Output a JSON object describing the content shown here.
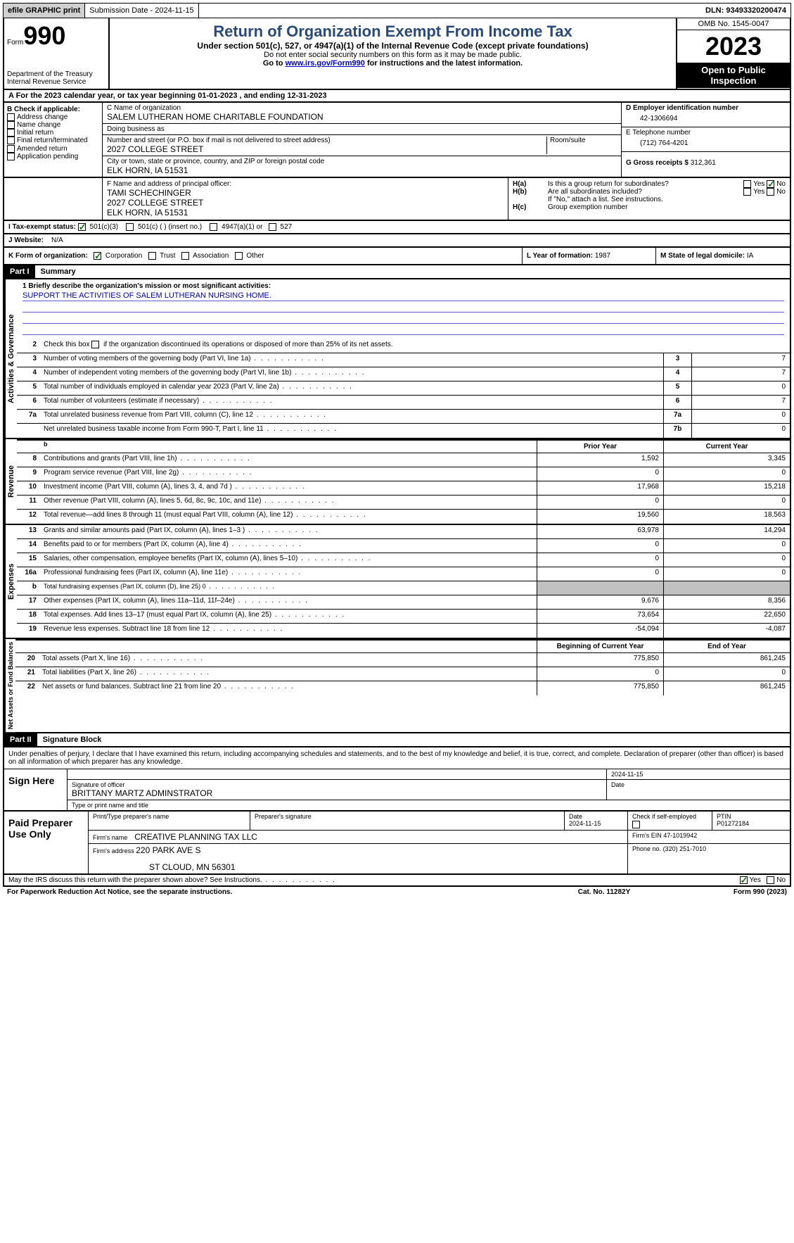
{
  "topbar": {
    "efile": "efile GRAPHIC print",
    "submission": "Submission Date - 2024-11-15",
    "dln": "DLN: 93493320200474"
  },
  "header": {
    "form_label": "Form",
    "form_num": "990",
    "dept": "Department of the Treasury Internal Revenue Service",
    "title": "Return of Organization Exempt From Income Tax",
    "sub": "Under section 501(c), 527, or 4947(a)(1) of the Internal Revenue Code (except private foundations)",
    "note1": "Do not enter social security numbers on this form as it may be made public.",
    "note2_pre": "Go to ",
    "note2_link": "www.irs.gov/Form990",
    "note2_post": " for instructions and the latest information.",
    "omb": "OMB No. 1545-0047",
    "year": "2023",
    "open": "Open to Public Inspection"
  },
  "row_a": "A For the 2023 calendar year, or tax year beginning 01-01-2023    , and ending 12-31-2023",
  "box_b": {
    "label": "B Check if applicable:",
    "items": [
      "Address change",
      "Name change",
      "Initial return",
      "Final return/terminated",
      "Amended return",
      "Application pending"
    ]
  },
  "box_c": {
    "name_label": "C Name of organization",
    "name": "SALEM LUTHERAN HOME CHARITABLE FOUNDATION",
    "dba_label": "Doing business as",
    "dba": "",
    "addr_label": "Number and street (or P.O. box if mail is not delivered to street address)",
    "addr": "2027 COLLEGE STREET",
    "room_label": "Room/suite",
    "city_label": "City or town, state or province, country, and ZIP or foreign postal code",
    "city": "ELK HORN, IA  51531"
  },
  "box_d": {
    "label": "D Employer identification number",
    "val": "42-1306694"
  },
  "box_e": {
    "label": "E Telephone number",
    "val": "(712) 764-4201"
  },
  "box_g": {
    "label": "G Gross receipts $ ",
    "val": "312,361"
  },
  "box_f": {
    "label": "F  Name and address of principal officer:",
    "name": "TAMI SCHECHINGER",
    "addr1": "2027 COLLEGE STREET",
    "addr2": "ELK HORN, IA  51531"
  },
  "box_h": {
    "a_label": "H(a)",
    "a_text": "Is this a group return for subordinates?",
    "b_label": "H(b)",
    "b_text": "Are all subordinates included?",
    "note": "If \"No,\" attach a list. See instructions.",
    "c_label": "H(c)",
    "c_text": "Group exemption number"
  },
  "box_i": {
    "label": "I   Tax-exempt status:",
    "o1": "501(c)(3)",
    "o2": "501(c) (  ) (insert no.)",
    "o3": "4947(a)(1) or",
    "o4": "527"
  },
  "box_j": {
    "label": "J   Website:",
    "val": "N/A"
  },
  "box_k": {
    "label": "K Form of organization:",
    "o1": "Corporation",
    "o2": "Trust",
    "o3": "Association",
    "o4": "Other"
  },
  "box_l": {
    "label": "L Year of formation: ",
    "val": "1987"
  },
  "box_m": {
    "label": "M State of legal domicile: ",
    "val": "IA"
  },
  "part1": {
    "header": "Part I",
    "title": "Summary",
    "vtabs": [
      "Activities & Governance",
      "Revenue",
      "Expenses",
      "Net Assets or Fund Balances"
    ],
    "line1_label": "1  Briefly describe the organization's mission or most significant activities:",
    "mission": "SUPPORT THE ACTIVITIES OF SALEM LUTHERAN NURSING HOME.",
    "line2": "Check this box       if the organization discontinued its operations or disposed of more than 25% of its net assets.",
    "gov_lines": [
      {
        "n": "3",
        "t": "Number of voting members of the governing body (Part VI, line 1a)",
        "box": "3",
        "v": "7"
      },
      {
        "n": "4",
        "t": "Number of independent voting members of the governing body (Part VI, line 1b)",
        "box": "4",
        "v": "7"
      },
      {
        "n": "5",
        "t": "Total number of individuals employed in calendar year 2023 (Part V, line 2a)",
        "box": "5",
        "v": "0"
      },
      {
        "n": "6",
        "t": "Total number of volunteers (estimate if necessary)",
        "box": "6",
        "v": "7"
      },
      {
        "n": "7a",
        "t": "Total unrelated business revenue from Part VIII, column (C), line 12",
        "box": "7a",
        "v": "0"
      },
      {
        "n": "",
        "t": "Net unrelated business taxable income from Form 990-T, Part I, line 11",
        "box": "7b",
        "v": "0"
      }
    ],
    "col_prior": "Prior Year",
    "col_current": "Current Year",
    "rev_lines": [
      {
        "n": "8",
        "t": "Contributions and grants (Part VIII, line 1h)",
        "p": "1,592",
        "c": "3,345"
      },
      {
        "n": "9",
        "t": "Program service revenue (Part VIII, line 2g)",
        "p": "0",
        "c": "0"
      },
      {
        "n": "10",
        "t": "Investment income (Part VIII, column (A), lines 3, 4, and 7d )",
        "p": "17,968",
        "c": "15,218"
      },
      {
        "n": "11",
        "t": "Other revenue (Part VIII, column (A), lines 5, 6d, 8c, 9c, 10c, and 11e)",
        "p": "0",
        "c": "0"
      },
      {
        "n": "12",
        "t": "Total revenue—add lines 8 through 11 (must equal Part VIII, column (A), line 12)",
        "p": "19,560",
        "c": "18,563"
      }
    ],
    "exp_lines": [
      {
        "n": "13",
        "t": "Grants and similar amounts paid (Part IX, column (A), lines 1–3 )",
        "p": "63,978",
        "c": "14,294"
      },
      {
        "n": "14",
        "t": "Benefits paid to or for members (Part IX, column (A), line 4)",
        "p": "0",
        "c": "0"
      },
      {
        "n": "15",
        "t": "Salaries, other compensation, employee benefits (Part IX, column (A), lines 5–10)",
        "p": "0",
        "c": "0"
      },
      {
        "n": "16a",
        "t": "Professional fundraising fees (Part IX, column (A), line 11e)",
        "p": "0",
        "c": "0"
      },
      {
        "n": "b",
        "t": "Total fundraising expenses (Part IX, column (D), line 25) 0",
        "p": "",
        "c": "",
        "shaded": true,
        "small": true
      },
      {
        "n": "17",
        "t": "Other expenses (Part IX, column (A), lines 11a–11d, 11f–24e)",
        "p": "9,676",
        "c": "8,356"
      },
      {
        "n": "18",
        "t": "Total expenses. Add lines 13–17 (must equal Part IX, column (A), line 25)",
        "p": "73,654",
        "c": "22,650"
      },
      {
        "n": "19",
        "t": "Revenue less expenses. Subtract line 18 from line 12",
        "p": "-54,094",
        "c": "-4,087"
      }
    ],
    "col_begin": "Beginning of Current Year",
    "col_end": "End of Year",
    "net_lines": [
      {
        "n": "20",
        "t": "Total assets (Part X, line 16)",
        "p": "775,850",
        "c": "861,245"
      },
      {
        "n": "21",
        "t": "Total liabilities (Part X, line 26)",
        "p": "0",
        "c": "0"
      },
      {
        "n": "22",
        "t": "Net assets or fund balances. Subtract line 21 from line 20",
        "p": "775,850",
        "c": "861,245"
      }
    ]
  },
  "part2": {
    "header": "Part II",
    "title": "Signature Block",
    "perjury": "Under penalties of perjury, I declare that I have examined this return, including accompanying schedules and statements, and to the best of my knowledge and belief, it is true, correct, and complete. Declaration of preparer (other than officer) is based on all information of which preparer has any knowledge.",
    "sign_here": "Sign Here",
    "sig_officer_label": "Signature of officer",
    "sig_officer": "BRITTANY MARTZ  ADMINSTRATOR",
    "sig_name_label": "Type or print name and title",
    "sig_date": "2024-11-15",
    "date_label": "Date",
    "paid": "Paid Preparer Use Only",
    "prep_name_label": "Print/Type preparer's name",
    "prep_sig_label": "Preparer's signature",
    "prep_date": "2024-11-15",
    "prep_check": "Check        if self-employed",
    "ptin_label": "PTIN",
    "ptin": "P01272184",
    "firm_name_label": "Firm's name",
    "firm_name": "CREATIVE PLANNING TAX LLC",
    "firm_ein_label": "Firm's EIN",
    "firm_ein": "47-1019942",
    "firm_addr_label": "Firm's address",
    "firm_addr1": "220 PARK AVE S",
    "firm_addr2": "ST CLOUD, MN  56301",
    "phone_label": "Phone no.",
    "phone": "(320) 251-7010"
  },
  "discuss": "May the IRS discuss this return with the preparer shown above? See Instructions.",
  "footer": {
    "left": "For Paperwork Reduction Act Notice, see the separate instructions.",
    "mid": "Cat. No. 11282Y",
    "right_pre": "Form ",
    "right_form": "990",
    "right_post": " (2023)"
  },
  "yn": {
    "yes": "Yes",
    "no": "No"
  }
}
